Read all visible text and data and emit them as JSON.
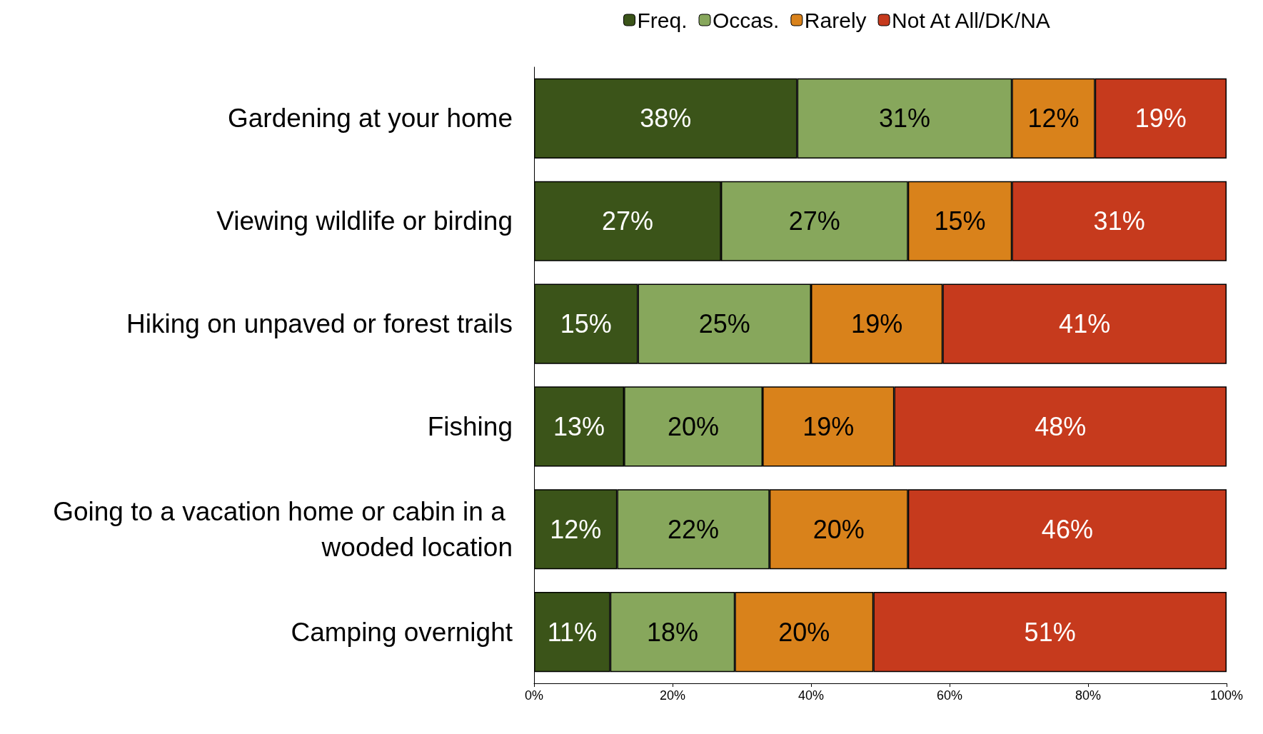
{
  "chart_data": {
    "type": "bar",
    "orientation": "horizontal",
    "stacked": true,
    "legend": "top",
    "grid": false,
    "categories": [
      "Gardening at your home",
      "Viewing wildlife or birding",
      "Hiking on unpaved or forest trails",
      "Fishing",
      "Going to a vacation home or cabin in a wooded location",
      "Camping overnight"
    ],
    "series": [
      {
        "name": "Freq.",
        "color": "#3b5419",
        "values": [
          38,
          27,
          15,
          13,
          12,
          11
        ],
        "value_labels": [
          "38%",
          "27%",
          "15%",
          "13%",
          "12%",
          "11%"
        ]
      },
      {
        "name": "Occas.",
        "color": "#87a75c",
        "values": [
          31,
          27,
          25,
          20,
          22,
          18
        ],
        "value_labels": [
          "31%",
          "27%",
          "25%",
          "20%",
          "22%",
          "18%"
        ]
      },
      {
        "name": "Rarely",
        "color": "#d9821b",
        "values": [
          12,
          15,
          19,
          19,
          20,
          20
        ],
        "value_labels": [
          "12%",
          "15%",
          "19%",
          "19%",
          "20%",
          "20%"
        ]
      },
      {
        "name": "Not At All/DK/NA",
        "color": "#c63a1d",
        "values": [
          19,
          31,
          41,
          48,
          46,
          51
        ],
        "value_labels": [
          "19%",
          "31%",
          "41%",
          "48%",
          "46%",
          "51%"
        ]
      }
    ],
    "xlim": [
      0,
      100
    ],
    "xticks": [
      {
        "value": 0,
        "label": "0%"
      },
      {
        "value": 20,
        "label": "20%"
      },
      {
        "value": 40,
        "label": "40%"
      },
      {
        "value": 60,
        "label": "60%"
      },
      {
        "value": 80,
        "label": "80%"
      },
      {
        "value": 100,
        "label": "100%"
      }
    ]
  }
}
